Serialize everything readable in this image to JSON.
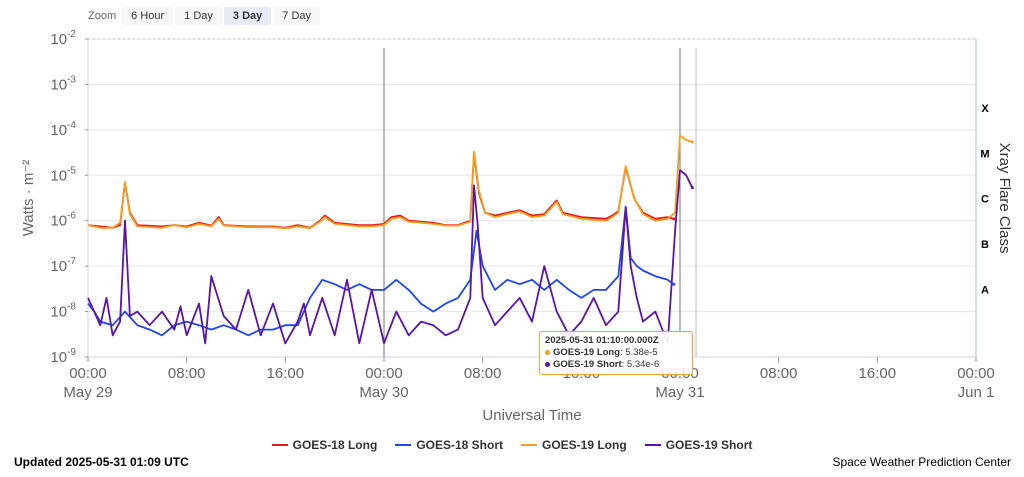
{
  "zoom": {
    "label": "Zoom",
    "buttons": [
      {
        "label": "6 Hour",
        "active": false
      },
      {
        "label": "1 Day",
        "active": false
      },
      {
        "label": "3 Day",
        "active": true
      },
      {
        "label": "7 Day",
        "active": false
      }
    ]
  },
  "footer": {
    "updated": "Updated 2025-05-31 01:09 UTC",
    "source": "Space Weather Prediction Center"
  },
  "tooltip": {
    "time": "2025-05-31 01:10:00.000Z",
    "rows": [
      {
        "series": "GOES-19 Long",
        "value": "5.38e-5",
        "color": "#f59e1b"
      },
      {
        "series": "GOES-19 Short",
        "value": "5.34e-6",
        "color": "#5b13a8"
      }
    ]
  },
  "chart_data": {
    "type": "line",
    "xlabel": "Universal Time",
    "ylabel": "Watts · m⁻²",
    "y2label": "Xray Flare Class",
    "yscale": "log",
    "ylim": [
      1e-09,
      0.01
    ],
    "xlim_hours": [
      0,
      72
    ],
    "y_ticks": [
      {
        "base": "10",
        "exp": "-2",
        "value": 0.01
      },
      {
        "base": "10",
        "exp": "-3",
        "value": 0.001
      },
      {
        "base": "10",
        "exp": "-4",
        "value": 0.0001
      },
      {
        "base": "10",
        "exp": "-5",
        "value": 1e-05
      },
      {
        "base": "10",
        "exp": "-6",
        "value": 1e-06
      },
      {
        "base": "10",
        "exp": "-7",
        "value": 1e-07
      },
      {
        "base": "10",
        "exp": "-8",
        "value": 1e-08
      },
      {
        "base": "10",
        "exp": "-9",
        "value": 1e-09
      }
    ],
    "x_ticks": [
      {
        "h": 0,
        "time": "00:00",
        "date": "May 29"
      },
      {
        "h": 8,
        "time": "08:00",
        "date": ""
      },
      {
        "h": 16,
        "time": "16:00",
        "date": ""
      },
      {
        "h": 24,
        "time": "00:00",
        "date": "May 30"
      },
      {
        "h": 32,
        "time": "08:00",
        "date": ""
      },
      {
        "h": 40,
        "time": "16:00",
        "date": ""
      },
      {
        "h": 48,
        "time": "00:00",
        "date": "May 31"
      },
      {
        "h": 56,
        "time": "08:00",
        "date": ""
      },
      {
        "h": 64,
        "time": "16:00",
        "date": ""
      },
      {
        "h": 72,
        "time": "00:00",
        "date": "Jun 1"
      }
    ],
    "flare_classes": [
      {
        "label": "X",
        "value": 0.0001
      },
      {
        "label": "M",
        "value": 1e-05
      },
      {
        "label": "C",
        "value": 1e-06
      },
      {
        "label": "B",
        "value": 1e-07
      },
      {
        "label": "A",
        "value": 1e-08
      }
    ],
    "vertical_markers_hours": [
      24,
      48
    ],
    "series": [
      {
        "name": "GOES-18 Long",
        "color": "#e8191c",
        "points": [
          [
            0,
            8e-07
          ],
          [
            1,
            7.5e-07
          ],
          [
            2,
            7e-07
          ],
          [
            2.6,
            8e-07
          ],
          [
            3,
            7e-06
          ],
          [
            3.4,
            1.5e-06
          ],
          [
            4,
            8e-07
          ],
          [
            6,
            7.5e-07
          ],
          [
            7,
            8e-07
          ],
          [
            8,
            7.5e-07
          ],
          [
            9,
            9e-07
          ],
          [
            10,
            7.8e-07
          ],
          [
            10.6,
            1.2e-06
          ],
          [
            11,
            8e-07
          ],
          [
            13,
            7.5e-07
          ],
          [
            15,
            7.5e-07
          ],
          [
            16,
            7e-07
          ],
          [
            17,
            8e-07
          ],
          [
            18,
            7e-07
          ],
          [
            18.8,
            1e-06
          ],
          [
            19.2,
            1.3e-06
          ],
          [
            20,
            9e-07
          ],
          [
            22,
            8e-07
          ],
          [
            23,
            8e-07
          ],
          [
            24,
            8.5e-07
          ],
          [
            24.6,
            1.2e-06
          ],
          [
            25.3,
            1.3e-06
          ],
          [
            26,
            1e-06
          ],
          [
            28,
            9e-07
          ],
          [
            29,
            8e-07
          ],
          [
            30,
            8e-07
          ],
          [
            31,
            1e-06
          ],
          [
            31.3,
            3e-05
          ],
          [
            31.7,
            4e-06
          ],
          [
            32.2,
            1.5e-06
          ],
          [
            33,
            1.3e-06
          ],
          [
            34,
            1.5e-06
          ],
          [
            35,
            1.7e-06
          ],
          [
            36,
            1.3e-06
          ],
          [
            37,
            1.4e-06
          ],
          [
            38,
            2.8e-06
          ],
          [
            38.5,
            1.5e-06
          ],
          [
            40,
            1.2e-06
          ],
          [
            42,
            1.1e-06
          ],
          [
            42.5,
            1.3e-06
          ],
          [
            43,
            1.6e-06
          ],
          [
            43.6,
            1.5e-05
          ],
          [
            44.3,
            3e-06
          ],
          [
            45,
            1.5e-06
          ],
          [
            46,
            1.1e-06
          ],
          [
            47,
            1.2e-06
          ],
          [
            47.5,
            1.1e-06
          ]
        ]
      },
      {
        "name": "GOES-18 Short",
        "color": "#1e46f0",
        "points": [
          [
            0,
            1.5e-08
          ],
          [
            0.5,
            1e-08
          ],
          [
            1,
            6e-09
          ],
          [
            2,
            5e-09
          ],
          [
            3,
            1e-08
          ],
          [
            4,
            5e-09
          ],
          [
            5,
            4e-09
          ],
          [
            6,
            3e-09
          ],
          [
            7,
            5e-09
          ],
          [
            8,
            6e-09
          ],
          [
            9,
            5e-09
          ],
          [
            10,
            4e-09
          ],
          [
            11,
            5e-09
          ],
          [
            12,
            4e-09
          ],
          [
            13,
            3e-09
          ],
          [
            14,
            4e-09
          ],
          [
            15,
            4e-09
          ],
          [
            16,
            5e-09
          ],
          [
            17,
            5e-09
          ],
          [
            18,
            2e-08
          ],
          [
            19,
            5e-08
          ],
          [
            20,
            4e-08
          ],
          [
            21,
            3e-08
          ],
          [
            22,
            4e-08
          ],
          [
            23,
            3e-08
          ],
          [
            24,
            3e-08
          ],
          [
            25,
            5e-08
          ],
          [
            26,
            3e-08
          ],
          [
            27,
            1.5e-08
          ],
          [
            28,
            1e-08
          ],
          [
            29,
            1.5e-08
          ],
          [
            30,
            2e-08
          ],
          [
            31,
            5e-08
          ],
          [
            31.5,
            6e-07
          ],
          [
            32,
            1e-07
          ],
          [
            33,
            3e-08
          ],
          [
            34,
            5e-08
          ],
          [
            35,
            4e-08
          ],
          [
            36,
            5e-08
          ],
          [
            37,
            3e-08
          ],
          [
            38,
            5e-08
          ],
          [
            39,
            3e-08
          ],
          [
            40,
            2e-08
          ],
          [
            41,
            3e-08
          ],
          [
            42,
            3e-08
          ],
          [
            43,
            6e-08
          ],
          [
            43.6,
            2e-06
          ],
          [
            44,
            1.5e-07
          ],
          [
            44.5,
            1e-07
          ],
          [
            45,
            8e-08
          ],
          [
            46,
            6e-08
          ],
          [
            47,
            5e-08
          ],
          [
            47.5,
            4e-08
          ]
        ]
      },
      {
        "name": "GOES-19 Long",
        "color": "#f59e1b",
        "points": [
          [
            0,
            8e-07
          ],
          [
            1,
            7e-07
          ],
          [
            2,
            7e-07
          ],
          [
            2.6,
            9e-07
          ],
          [
            3,
            7e-06
          ],
          [
            3.4,
            1.4e-06
          ],
          [
            4,
            7.5e-07
          ],
          [
            6,
            7e-07
          ],
          [
            7,
            8e-07
          ],
          [
            8,
            7.2e-07
          ],
          [
            9,
            8.5e-07
          ],
          [
            10,
            7.5e-07
          ],
          [
            10.6,
            1.1e-06
          ],
          [
            11,
            7.8e-07
          ],
          [
            13,
            7.2e-07
          ],
          [
            15,
            7.2e-07
          ],
          [
            16,
            6.8e-07
          ],
          [
            17,
            7.5e-07
          ],
          [
            18,
            6.8e-07
          ],
          [
            18.8,
            9.5e-07
          ],
          [
            19.2,
            1.2e-06
          ],
          [
            20,
            8.5e-07
          ],
          [
            22,
            7.5e-07
          ],
          [
            23,
            7.5e-07
          ],
          [
            24,
            8e-07
          ],
          [
            24.6,
            1.1e-06
          ],
          [
            25.3,
            1.2e-06
          ],
          [
            26,
            9.5e-07
          ],
          [
            28,
            8.5e-07
          ],
          [
            29,
            7.8e-07
          ],
          [
            30,
            7.8e-07
          ],
          [
            31,
            9.5e-07
          ],
          [
            31.3,
            3.3e-05
          ],
          [
            31.7,
            4.5e-06
          ],
          [
            32.2,
            1.5e-06
          ],
          [
            33,
            1.2e-06
          ],
          [
            34,
            1.4e-06
          ],
          [
            35,
            1.6e-06
          ],
          [
            36,
            1.2e-06
          ],
          [
            37,
            1.3e-06
          ],
          [
            38,
            2.6e-06
          ],
          [
            38.5,
            1.4e-06
          ],
          [
            40,
            1.1e-06
          ],
          [
            42,
            1e-06
          ],
          [
            42.5,
            1.2e-06
          ],
          [
            43,
            1.5e-06
          ],
          [
            43.6,
            1.6e-05
          ],
          [
            44.3,
            3e-06
          ],
          [
            45,
            1.4e-06
          ],
          [
            46,
            1e-06
          ],
          [
            47,
            1.1e-06
          ],
          [
            47.6,
            1.5e-06
          ],
          [
            48,
            7.5e-05
          ],
          [
            48.5,
            6e-05
          ],
          [
            49,
            5.4e-05
          ]
        ]
      },
      {
        "name": "GOES-19 Short",
        "color": "#5b13a8",
        "points": [
          [
            0,
            2e-08
          ],
          [
            0.5,
            1e-08
          ],
          [
            1,
            5e-09
          ],
          [
            1.5,
            2e-08
          ],
          [
            2,
            3e-09
          ],
          [
            2.6,
            6e-09
          ],
          [
            3,
            1e-06
          ],
          [
            3.4,
            8e-09
          ],
          [
            4,
            1e-08
          ],
          [
            5,
            5e-09
          ],
          [
            6,
            1e-08
          ],
          [
            7,
            4e-09
          ],
          [
            7.5,
            1.3e-08
          ],
          [
            8,
            3e-09
          ],
          [
            9,
            1.5e-08
          ],
          [
            9.5,
            2e-09
          ],
          [
            10,
            6e-08
          ],
          [
            11,
            8e-09
          ],
          [
            12,
            4e-09
          ],
          [
            13,
            3e-08
          ],
          [
            14,
            3e-09
          ],
          [
            15,
            1.5e-08
          ],
          [
            16,
            2e-09
          ],
          [
            17,
            6e-09
          ],
          [
            17.5,
            1.5e-08
          ],
          [
            18,
            3e-09
          ],
          [
            19,
            2e-08
          ],
          [
            20,
            3e-09
          ],
          [
            21,
            5e-08
          ],
          [
            22,
            2e-09
          ],
          [
            23,
            3e-08
          ],
          [
            24,
            2e-09
          ],
          [
            25,
            1e-08
          ],
          [
            26,
            3e-09
          ],
          [
            27,
            6e-09
          ],
          [
            28,
            5e-09
          ],
          [
            29,
            3e-09
          ],
          [
            30,
            4e-09
          ],
          [
            31,
            2e-08
          ],
          [
            31.3,
            6e-06
          ],
          [
            31.6,
            8e-07
          ],
          [
            32,
            2e-08
          ],
          [
            33,
            5e-09
          ],
          [
            34,
            1e-08
          ],
          [
            35,
            2e-08
          ],
          [
            36,
            6e-09
          ],
          [
            37,
            1e-07
          ],
          [
            38,
            1e-08
          ],
          [
            39,
            3e-09
          ],
          [
            40,
            6e-09
          ],
          [
            41,
            2e-08
          ],
          [
            42,
            5e-09
          ],
          [
            43,
            1e-08
          ],
          [
            43.6,
            2e-06
          ],
          [
            44,
            1e-07
          ],
          [
            44.5,
            2e-08
          ],
          [
            45,
            6e-09
          ],
          [
            46,
            1e-08
          ],
          [
            47,
            2e-09
          ],
          [
            47.6,
            6e-07
          ],
          [
            48,
            1.3e-05
          ],
          [
            48.5,
            1e-05
          ],
          [
            49,
            5.34e-06
          ]
        ]
      }
    ]
  }
}
